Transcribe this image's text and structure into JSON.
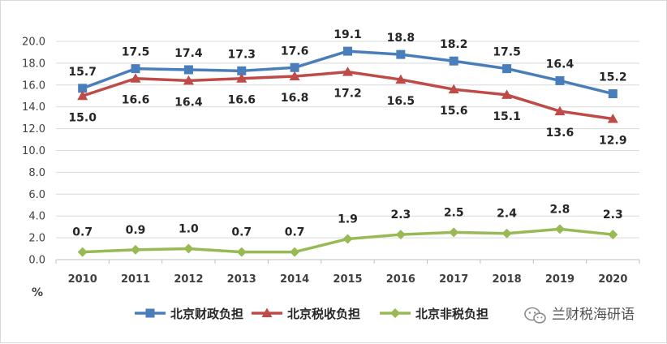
{
  "chart_data": {
    "type": "line",
    "x": [
      "2010",
      "2011",
      "2012",
      "2013",
      "2014",
      "2015",
      "2016",
      "2017",
      "2018",
      "2019",
      "2020"
    ],
    "ylim": [
      0,
      20
    ],
    "yticks": [
      "0.0",
      "2.0",
      "4.0",
      "6.0",
      "8.0",
      "10.0",
      "12.0",
      "14.0",
      "16.0",
      "18.0",
      "20.0"
    ],
    "ylabel": "%",
    "grid": "horizontal",
    "legend_position": "bottom",
    "series": [
      {
        "name": "北京财政负担",
        "color": "#4a7ebb",
        "marker": "square",
        "values": [
          15.7,
          17.5,
          17.4,
          17.3,
          17.6,
          19.1,
          18.8,
          18.2,
          17.5,
          16.4,
          15.2
        ],
        "labels": [
          "15.7",
          "17.5",
          "17.4",
          "17.3",
          "17.6",
          "19.1",
          "18.8",
          "18.2",
          "17.5",
          "16.4",
          "15.2"
        ]
      },
      {
        "name": "北京税收负担",
        "color": "#be4b48",
        "marker": "triangle",
        "values": [
          15.0,
          16.6,
          16.4,
          16.6,
          16.8,
          17.2,
          16.5,
          15.6,
          15.1,
          13.6,
          12.9
        ],
        "labels": [
          "15.0",
          "16.6",
          "16.4",
          "16.6",
          "16.8",
          "17.2",
          "16.5",
          "15.6",
          "15.1",
          "13.6",
          "12.9"
        ]
      },
      {
        "name": "北京非税负担",
        "color": "#98b954",
        "marker": "diamond",
        "values": [
          0.7,
          0.9,
          1.0,
          0.7,
          0.7,
          1.9,
          2.3,
          2.5,
          2.4,
          2.8,
          2.3
        ],
        "labels": [
          "0.7",
          "0.9",
          "1.0",
          "0.7",
          "0.7",
          "1.9",
          "2.3",
          "2.5",
          "2.4",
          "2.8",
          "2.3"
        ]
      }
    ]
  },
  "watermark": {
    "text": "兰财税海研语",
    "icon": "wechat-icon"
  }
}
